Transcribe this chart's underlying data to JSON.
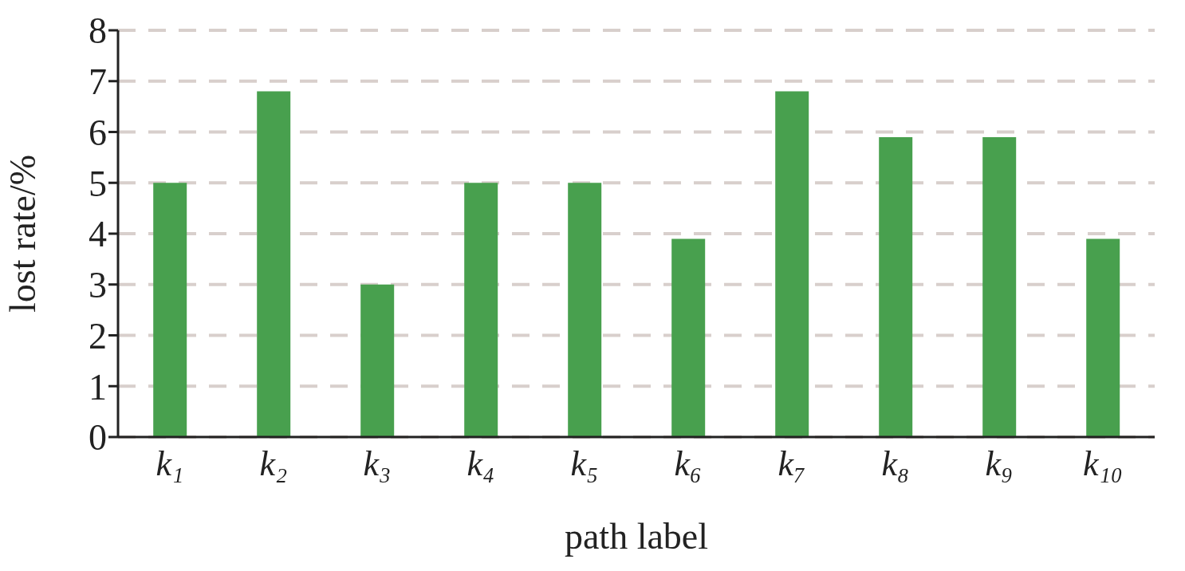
{
  "chart_data": {
    "type": "bar",
    "xlabel": "path label",
    "ylabel": "lost rate/%",
    "categories": [
      "k₁",
      "k₂",
      "k₃",
      "k₄",
      "k₅",
      "k₆",
      "k₇",
      "k₈",
      "k₉",
      "k₁₀"
    ],
    "values": [
      5.0,
      6.8,
      3.0,
      5.0,
      5.0,
      3.9,
      6.8,
      5.9,
      5.9,
      3.9
    ],
    "color": "#48a04e",
    "ylim": [
      0,
      8
    ],
    "yticks": [
      0,
      1,
      2,
      3,
      4,
      5,
      6,
      7,
      8
    ],
    "grid": "y"
  }
}
